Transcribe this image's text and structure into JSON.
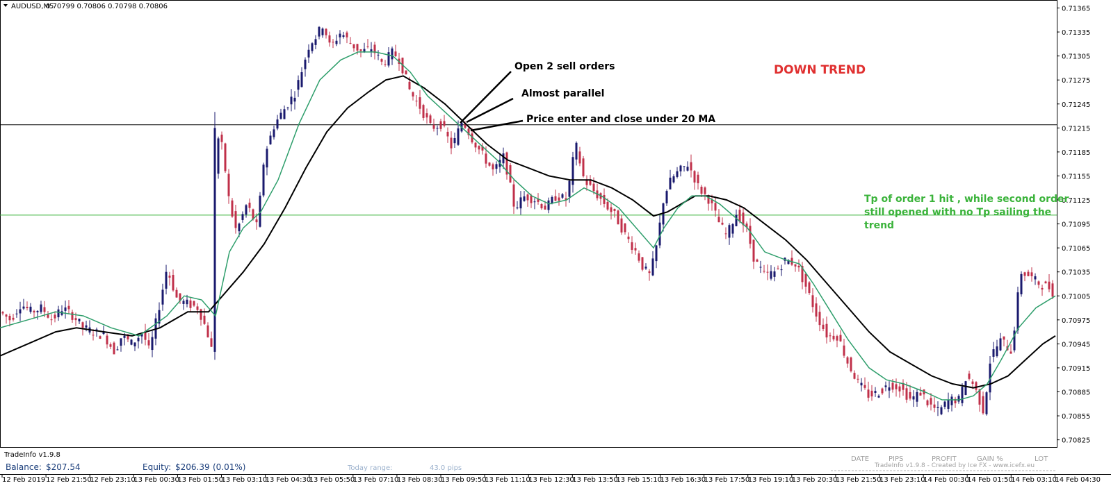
{
  "header": {
    "symbol": "AUDUSD,M5",
    "quote": "0.70799 0.70806 0.70798 0.70806"
  },
  "annotations": {
    "open_orders": "Open 2 sell orders",
    "almost_parallel": "Almost parallel",
    "price_enter": "Price enter and close under 20 MA",
    "trend": "DOWN TREND",
    "tp_note_lines": [
      "Tp of order 1 hit , while second order",
      "still opened with no Tp sailing the",
      "trend"
    ]
  },
  "panel": {
    "name": "TradeInfo v1.9.8",
    "balance_label": "Balance:",
    "balance_value": "$207.54",
    "equity_label": "Equity:",
    "equity_value": "$206.39",
    "equity_pct": "(0.01%)",
    "today_label": "Today range:",
    "today_value": "43.0 pips",
    "columns": [
      "DATE",
      "PIPS",
      "PROFIT",
      "GAIN %",
      "LOT"
    ],
    "credit": "TradeInfo v1.9.8 - Created by Ice FX - www.icefx.eu"
  },
  "colors": {
    "bull": "#1a1a6e",
    "bear": "#c0304a",
    "ma_fast": "#2e9e6b",
    "ma_slow": "#000000",
    "trend_text": "#e03030",
    "tp_text": "#3bb33b",
    "hline_tp": "#3bb33b",
    "hline_entry": "#000000"
  },
  "chart_data": {
    "type": "candlestick",
    "y_ticks": [
      "0.71365",
      "0.71335",
      "0.71305",
      "0.71275",
      "0.71245",
      "0.71215",
      "0.71185",
      "0.71155",
      "0.71125",
      "0.71095",
      "0.71065",
      "0.71035",
      "0.71005",
      "0.70975",
      "0.70945",
      "0.70915",
      "0.70885",
      "0.70855",
      "0.70825"
    ],
    "x_ticks": [
      "12 Feb 2019",
      "12 Feb 21:50",
      "12 Feb 23:10",
      "13 Feb 00:30",
      "13 Feb 01:50",
      "13 Feb 03:10",
      "13 Feb 04:30",
      "13 Feb 05:50",
      "13 Feb 07:10",
      "13 Feb 08:30",
      "13 Feb 09:50",
      "13 Feb 11:10",
      "13 Feb 12:30",
      "13 Feb 13:50",
      "13 Feb 15:10",
      "13 Feb 16:30",
      "13 Feb 17:50",
      "13 Feb 19:10",
      "13 Feb 20:30",
      "13 Feb 21:50",
      "13 Feb 23:10",
      "14 Feb 00:30",
      "14 Feb 01:50",
      "14 Feb 03:10",
      "14 Feb 04:30"
    ],
    "ylim": [
      0.70816,
      0.71375
    ],
    "hlines": [
      0.71219,
      0.71106
    ],
    "price_path": [
      [
        0,
        0.70985
      ],
      [
        15,
        0.70975
      ],
      [
        30,
        0.70995
      ],
      [
        45,
        0.70985
      ],
      [
        60,
        0.7099
      ],
      [
        75,
        0.70975
      ],
      [
        90,
        0.7099
      ],
      [
        105,
        0.7098
      ],
      [
        120,
        0.70965
      ],
      [
        135,
        0.7096
      ],
      [
        150,
        0.70955
      ],
      [
        165,
        0.70935
      ],
      [
        175,
        0.70955
      ],
      [
        190,
        0.70945
      ],
      [
        205,
        0.7096
      ],
      [
        215,
        0.70935
      ],
      [
        225,
        0.70975
      ],
      [
        240,
        0.7104
      ],
      [
        255,
        0.71
      ],
      [
        270,
        0.70995
      ],
      [
        285,
        0.7099
      ],
      [
        298,
        0.7096
      ],
      [
        305,
        0.70935
      ],
      [
        310,
        0.7121
      ],
      [
        320,
        0.7119
      ],
      [
        330,
        0.7112
      ],
      [
        340,
        0.71085
      ],
      [
        355,
        0.7112
      ],
      [
        370,
        0.7109
      ],
      [
        380,
        0.7118
      ],
      [
        395,
        0.7122
      ],
      [
        410,
        0.7124
      ],
      [
        425,
        0.7126
      ],
      [
        435,
        0.7129
      ],
      [
        445,
        0.7132
      ],
      [
        455,
        0.7133
      ],
      [
        465,
        0.71345
      ],
      [
        475,
        0.71315
      ],
      [
        490,
        0.71335
      ],
      [
        505,
        0.7132
      ],
      [
        520,
        0.7131
      ],
      [
        535,
        0.71315
      ],
      [
        550,
        0.71295
      ],
      [
        565,
        0.7131
      ],
      [
        575,
        0.713
      ],
      [
        590,
        0.7126
      ],
      [
        605,
        0.7124
      ],
      [
        620,
        0.71215
      ],
      [
        635,
        0.7122
      ],
      [
        650,
        0.7119
      ],
      [
        665,
        0.71225
      ],
      [
        680,
        0.712
      ],
      [
        695,
        0.7118
      ],
      [
        710,
        0.7116
      ],
      [
        725,
        0.7118
      ],
      [
        740,
        0.71115
      ],
      [
        755,
        0.7113
      ],
      [
        770,
        0.71125
      ],
      [
        785,
        0.71115
      ],
      [
        800,
        0.7113
      ],
      [
        815,
        0.71125
      ],
      [
        828,
        0.71195
      ],
      [
        840,
        0.7115
      ],
      [
        855,
        0.71135
      ],
      [
        870,
        0.7112
      ],
      [
        885,
        0.71105
      ],
      [
        900,
        0.7108
      ],
      [
        915,
        0.7106
      ],
      [
        925,
        0.7104
      ],
      [
        935,
        0.7103
      ],
      [
        945,
        0.7107
      ],
      [
        955,
        0.7113
      ],
      [
        965,
        0.7115
      ],
      [
        975,
        0.7116
      ],
      [
        990,
        0.7117
      ],
      [
        1005,
        0.7114
      ],
      [
        1020,
        0.71125
      ],
      [
        1035,
        0.71095
      ],
      [
        1045,
        0.7108
      ],
      [
        1060,
        0.7111
      ],
      [
        1075,
        0.71085
      ],
      [
        1085,
        0.7105
      ],
      [
        1100,
        0.7103
      ],
      [
        1115,
        0.71035
      ],
      [
        1130,
        0.7105
      ],
      [
        1145,
        0.71045
      ],
      [
        1160,
        0.71015
      ],
      [
        1175,
        0.7098
      ],
      [
        1190,
        0.70955
      ],
      [
        1205,
        0.70955
      ],
      [
        1220,
        0.7092
      ],
      [
        1235,
        0.70895
      ],
      [
        1250,
        0.7088
      ],
      [
        1265,
        0.70885
      ],
      [
        1280,
        0.70895
      ],
      [
        1295,
        0.7089
      ],
      [
        1310,
        0.70875
      ],
      [
        1325,
        0.70885
      ],
      [
        1335,
        0.7087
      ],
      [
        1350,
        0.7086
      ],
      [
        1365,
        0.70875
      ],
      [
        1380,
        0.70875
      ],
      [
        1390,
        0.70905
      ],
      [
        1400,
        0.70895
      ],
      [
        1415,
        0.7086
      ],
      [
        1425,
        0.7093
      ],
      [
        1440,
        0.7095
      ],
      [
        1455,
        0.70935
      ],
      [
        1468,
        0.71035
      ],
      [
        1480,
        0.7103
      ],
      [
        1495,
        0.7102
      ],
      [
        1510,
        0.71015
      ],
      [
        1518,
        0.71005
      ]
    ],
    "ma_fast_path": [
      [
        0,
        0.70965
      ],
      [
        40,
        0.70975
      ],
      [
        80,
        0.70985
      ],
      [
        120,
        0.7098
      ],
      [
        160,
        0.70965
      ],
      [
        200,
        0.70955
      ],
      [
        240,
        0.7098
      ],
      [
        265,
        0.71005
      ],
      [
        290,
        0.71
      ],
      [
        310,
        0.7098
      ],
      [
        330,
        0.7106
      ],
      [
        350,
        0.7109
      ],
      [
        375,
        0.7111
      ],
      [
        400,
        0.7115
      ],
      [
        430,
        0.7122
      ],
      [
        460,
        0.71275
      ],
      [
        490,
        0.713
      ],
      [
        515,
        0.7131
      ],
      [
        540,
        0.7131
      ],
      [
        565,
        0.71305
      ],
      [
        590,
        0.71285
      ],
      [
        615,
        0.71255
      ],
      [
        640,
        0.71235
      ],
      [
        665,
        0.71215
      ],
      [
        690,
        0.71195
      ],
      [
        715,
        0.71175
      ],
      [
        740,
        0.7115
      ],
      [
        765,
        0.7113
      ],
      [
        790,
        0.7112
      ],
      [
        815,
        0.71125
      ],
      [
        840,
        0.7114
      ],
      [
        865,
        0.7113
      ],
      [
        890,
        0.71115
      ],
      [
        915,
        0.7109
      ],
      [
        940,
        0.71065
      ],
      [
        955,
        0.7109
      ],
      [
        975,
        0.71115
      ],
      [
        995,
        0.7113
      ],
      [
        1015,
        0.7113
      ],
      [
        1035,
        0.7112
      ],
      [
        1055,
        0.71105
      ],
      [
        1075,
        0.7109
      ],
      [
        1100,
        0.7106
      ],
      [
        1130,
        0.7105
      ],
      [
        1150,
        0.71045
      ],
      [
        1170,
        0.7102
      ],
      [
        1195,
        0.70985
      ],
      [
        1220,
        0.7095
      ],
      [
        1250,
        0.70915
      ],
      [
        1275,
        0.709
      ],
      [
        1300,
        0.70895
      ],
      [
        1330,
        0.70885
      ],
      [
        1355,
        0.70875
      ],
      [
        1380,
        0.70875
      ],
      [
        1400,
        0.7088
      ],
      [
        1420,
        0.70895
      ],
      [
        1440,
        0.70925
      ],
      [
        1465,
        0.70965
      ],
      [
        1490,
        0.7099
      ],
      [
        1518,
        0.71005
      ]
    ],
    "ma_slow_path": [
      [
        0,
        0.7093
      ],
      [
        40,
        0.70945
      ],
      [
        80,
        0.7096
      ],
      [
        110,
        0.70965
      ],
      [
        150,
        0.7096
      ],
      [
        190,
        0.70955
      ],
      [
        230,
        0.70965
      ],
      [
        270,
        0.70985
      ],
      [
        300,
        0.70985
      ],
      [
        320,
        0.71005
      ],
      [
        350,
        0.71035
      ],
      [
        380,
        0.7107
      ],
      [
        410,
        0.71115
      ],
      [
        440,
        0.71165
      ],
      [
        470,
        0.7121
      ],
      [
        500,
        0.7124
      ],
      [
        530,
        0.7126
      ],
      [
        555,
        0.71275
      ],
      [
        580,
        0.7128
      ],
      [
        610,
        0.71265
      ],
      [
        640,
        0.71245
      ],
      [
        670,
        0.7122
      ],
      [
        700,
        0.71195
      ],
      [
        730,
        0.71175
      ],
      [
        760,
        0.71165
      ],
      [
        790,
        0.71155
      ],
      [
        820,
        0.7115
      ],
      [
        850,
        0.7115
      ],
      [
        880,
        0.7114
      ],
      [
        910,
        0.71125
      ],
      [
        940,
        0.71105
      ],
      [
        960,
        0.7111
      ],
      [
        980,
        0.7112
      ],
      [
        1000,
        0.7113
      ],
      [
        1020,
        0.7113
      ],
      [
        1045,
        0.71125
      ],
      [
        1070,
        0.71115
      ],
      [
        1100,
        0.71095
      ],
      [
        1130,
        0.71075
      ],
      [
        1160,
        0.7105
      ],
      [
        1190,
        0.7102
      ],
      [
        1220,
        0.7099
      ],
      [
        1250,
        0.7096
      ],
      [
        1280,
        0.70935
      ],
      [
        1310,
        0.7092
      ],
      [
        1340,
        0.70905
      ],
      [
        1370,
        0.70895
      ],
      [
        1400,
        0.7089
      ],
      [
        1425,
        0.70895
      ],
      [
        1450,
        0.70905
      ],
      [
        1475,
        0.70925
      ],
      [
        1500,
        0.70945
      ],
      [
        1518,
        0.70955
      ]
    ]
  }
}
